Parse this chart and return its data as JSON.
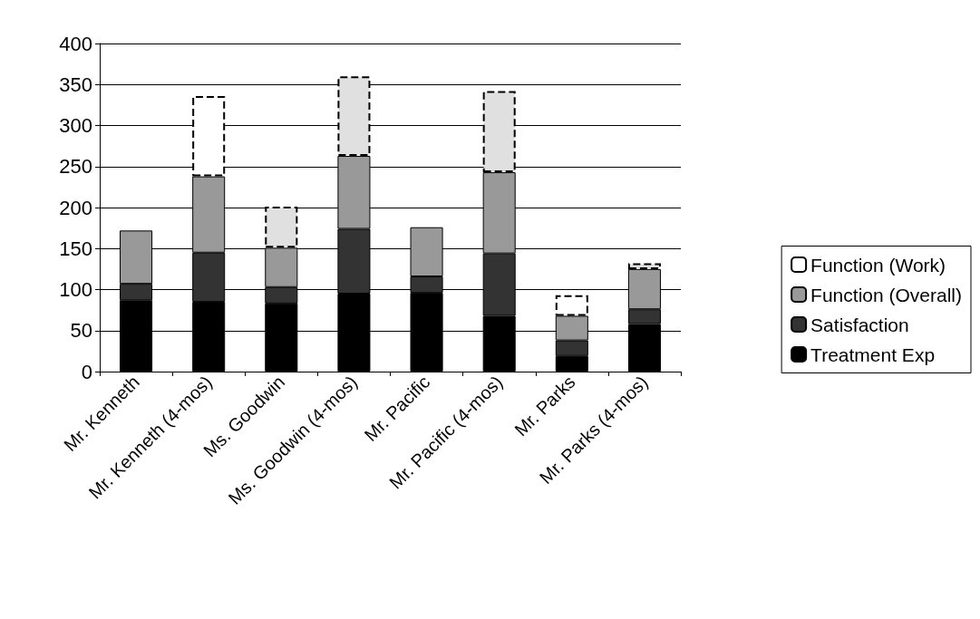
{
  "chart_data": {
    "type": "bar",
    "stacked": true,
    "categories": [
      "Mr. Kenneth",
      "Mr. Kenneth (4-mos)",
      "Ms. Goodwin",
      "Ms. Goodwin (4-mos)",
      "Mr. Pacific",
      "Mr. Pacific (4-mos)",
      "Mr. Parks",
      "Mr. Parks (4-mos)"
    ],
    "series": [
      {
        "name": "Treatment Exp",
        "color": "#000000",
        "values": [
          87,
          85,
          83,
          95,
          96,
          68,
          19,
          58
        ]
      },
      {
        "name": "Satisfaction",
        "color": "#333333",
        "values": [
          20,
          60,
          20,
          79,
          20,
          76,
          19,
          18
        ]
      },
      {
        "name": "Function (Overall)",
        "color": "#999999",
        "values": [
          65,
          93,
          48,
          89,
          60,
          99,
          30,
          49
        ]
      },
      {
        "name": "Function (Work)",
        "color": "#ffffff",
        "colors": [
          "#ffffff",
          "#ffffff",
          "#e0e0e0",
          "#e0e0e0",
          "#ffffff",
          "#e0e0e0",
          "#ffffff",
          "#e0e0e0"
        ],
        "line_style": "dashed",
        "values": [
          null,
          98,
          50,
          97,
          null,
          99,
          25,
          7
        ]
      }
    ],
    "ylim": [
      0,
      400
    ],
    "yticks": [
      0,
      50,
      100,
      150,
      200,
      250,
      300,
      350,
      400
    ],
    "grid": "y",
    "legend": "right"
  }
}
